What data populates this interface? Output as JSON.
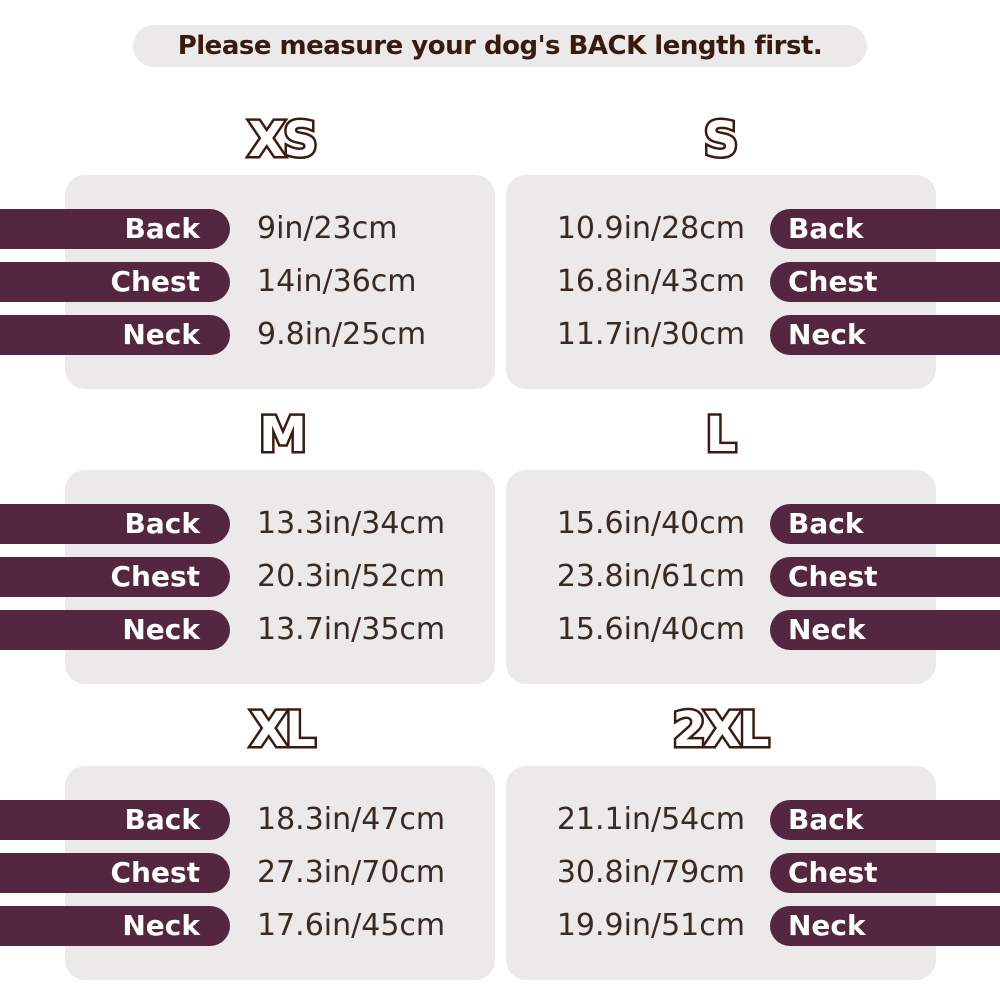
{
  "header": {
    "title": "Please measure your dog's BACK length first."
  },
  "sizes": [
    {
      "name": "XS",
      "rows": [
        {
          "label": "Back",
          "value": "9in/23cm"
        },
        {
          "label": "Chest",
          "value": "14in/36cm"
        },
        {
          "label": "Neck",
          "value": "9.8in/25cm"
        }
      ]
    },
    {
      "name": "S",
      "rows": [
        {
          "label": "Back",
          "value": "10.9in/28cm"
        },
        {
          "label": "Chest",
          "value": "16.8in/43cm"
        },
        {
          "label": "Neck",
          "value": "11.7in/30cm"
        }
      ]
    },
    {
      "name": "M",
      "rows": [
        {
          "label": "Back",
          "value": "13.3in/34cm"
        },
        {
          "label": "Chest",
          "value": "20.3in/52cm"
        },
        {
          "label": "Neck",
          "value": "13.7in/35cm"
        }
      ]
    },
    {
      "name": "L",
      "rows": [
        {
          "label": "Back",
          "value": "15.6in/40cm"
        },
        {
          "label": "Chest",
          "value": "23.8in/61cm"
        },
        {
          "label": "Neck",
          "value": "15.6in/40cm"
        }
      ]
    },
    {
      "name": "XL",
      "rows": [
        {
          "label": "Back",
          "value": "18.3in/47cm"
        },
        {
          "label": "Chest",
          "value": "27.3in/70cm"
        },
        {
          "label": "Neck",
          "value": "17.6in/45cm"
        }
      ]
    },
    {
      "name": "2XL",
      "rows": [
        {
          "label": "Back",
          "value": "21.1in/54cm"
        },
        {
          "label": "Chest",
          "value": "30.8in/79cm"
        },
        {
          "label": "Neck",
          "value": "19.9in/51cm"
        }
      ]
    }
  ]
}
